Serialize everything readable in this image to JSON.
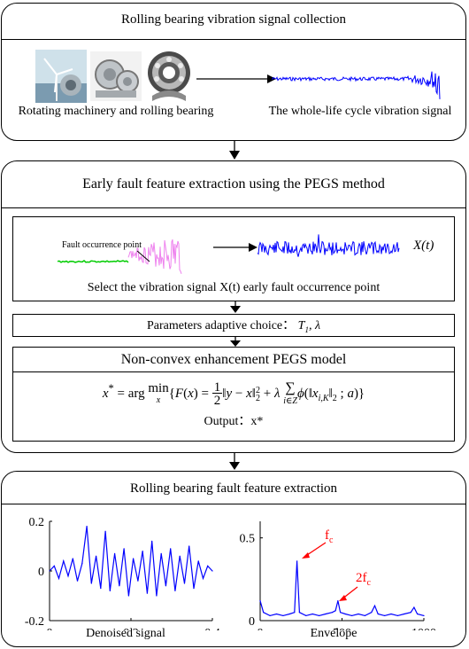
{
  "panel1": {
    "title": "Rolling bearing vibration signal collection",
    "left_caption": "Rotating machinery and rolling bearing",
    "right_caption": "The whole-life cycle vibration signal"
  },
  "panel2": {
    "title": "Early fault feature extraction using the PEGS method",
    "fault_label": "Fault occurrence point",
    "xt_label": "X(t)",
    "select_caption": "Select the vibration signal X(t) early fault occurrence point",
    "params_caption": "Parameters adaptive choice：",
    "params_symbols": "T1, λ",
    "model_title": "Non-convex enhancement PEGS model",
    "formula": "x* = arg min_x {F(x) = 1/2 ||y − x||₂² + λ Σ_{i∈Z} φ(||x_{i,K}||₂; a)}",
    "output_caption": "Output：x*"
  },
  "panel3": {
    "title": "Rolling bearing fault feature extraction",
    "left_chart_caption": "Denoised signal",
    "right_chart_caption": "Envelope",
    "fc_label": "f",
    "fc_sub": "c",
    "fc2_label": "2f",
    "fc2_sub": "c"
  },
  "chart_data": [
    {
      "type": "line",
      "title": "",
      "xlabel": "Denoised signal",
      "ylabel": "",
      "xlim": [
        0,
        0.4
      ],
      "ylim": [
        -0.2,
        0.2
      ],
      "x_ticks": [
        "0",
        "0.2",
        "0.4"
      ],
      "y_ticks": [
        "0.2",
        "0",
        "-0.2"
      ],
      "series": [
        {
          "values": [
            0.0,
            0.02,
            -0.03,
            0.04,
            -0.02,
            0.05,
            -0.04,
            0.03,
            0.18,
            -0.05,
            0.06,
            -0.07,
            0.16,
            -0.08,
            0.07,
            -0.06,
            0.09,
            -0.1,
            0.05,
            -0.04,
            0.08,
            -0.09,
            0.12,
            -0.1,
            0.07,
            -0.06,
            0.09,
            -0.08,
            0.06,
            -0.05,
            0.1,
            -0.07,
            0.04,
            -0.03,
            0.02,
            0.0
          ]
        }
      ]
    },
    {
      "type": "line",
      "title": "",
      "xlabel": "Envelope",
      "ylabel": "",
      "xlim": [
        0,
        1000
      ],
      "ylim": [
        0,
        0.6
      ],
      "x_ticks": [
        "0",
        "500",
        "1000"
      ],
      "y_ticks": [
        "0.5",
        "0"
      ],
      "series": [
        {
          "x": [
            0,
            20,
            60,
            100,
            140,
            180,
            210,
            225,
            240,
            280,
            320,
            360,
            400,
            440,
            460,
            475,
            490,
            520,
            560,
            600,
            640,
            680,
            700,
            720,
            760,
            800,
            840,
            880,
            920,
            940,
            960,
            1000
          ],
          "values": [
            0.12,
            0.05,
            0.03,
            0.04,
            0.03,
            0.04,
            0.05,
            0.36,
            0.05,
            0.03,
            0.04,
            0.03,
            0.04,
            0.05,
            0.06,
            0.12,
            0.05,
            0.04,
            0.03,
            0.04,
            0.03,
            0.05,
            0.09,
            0.04,
            0.03,
            0.04,
            0.03,
            0.04,
            0.05,
            0.08,
            0.04,
            0.03
          ]
        }
      ]
    }
  ],
  "colors": {
    "signal": "#0000ff",
    "fault_pre": "#00cc00",
    "fault_post": "#ee82ee",
    "annotation": "#ff0000"
  }
}
